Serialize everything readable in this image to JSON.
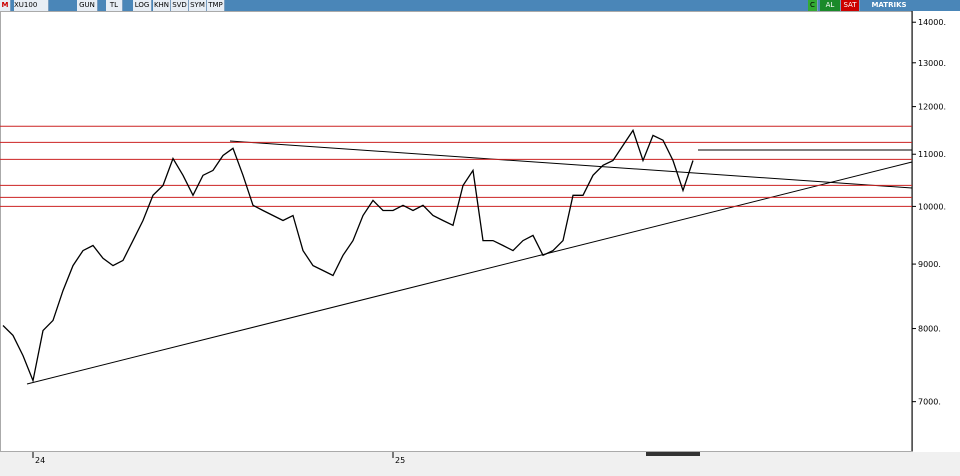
{
  "toolbar": {
    "logo": "M",
    "symbol": "XU100",
    "buttons": [
      "GUN",
      "TL",
      "LOG",
      "KHN",
      "SVD",
      "SYM",
      "TMP"
    ],
    "right": [
      "C",
      "AL",
      "SAT",
      "MATRIKS"
    ]
  },
  "chart_data": {
    "type": "line",
    "color": "#000000",
    "log_scale": true,
    "categories": [
      null,
      null,
      null,
      "24",
      null,
      null,
      null,
      null,
      null,
      null,
      null,
      null,
      null,
      null,
      null,
      null,
      null,
      null,
      null,
      null,
      null,
      null,
      null,
      null,
      null,
      null,
      null,
      null,
      null,
      null,
      null,
      null,
      null,
      null,
      null,
      null,
      null,
      null,
      null,
      "25",
      null,
      null,
      null,
      null,
      null,
      null,
      null,
      null,
      null,
      null,
      null,
      null,
      null,
      null,
      null,
      null,
      null,
      null,
      null,
      null,
      null,
      null,
      null,
      null,
      null,
      null,
      null,
      null,
      null,
      null
    ],
    "values": [
      8045,
      7900,
      7615,
      7275,
      7970,
      8120,
      8575,
      8975,
      9225,
      9310,
      9095,
      8975,
      9060,
      9395,
      9745,
      10205,
      10390,
      10915,
      10585,
      10205,
      10585,
      10680,
      10975,
      11120,
      10585,
      10020,
      9925,
      9835,
      9745,
      9835,
      9225,
      8975,
      8895,
      8815,
      9145,
      9395,
      9835,
      10110,
      9925,
      9925,
      10020,
      9925,
      10020,
      9835,
      9745,
      9660,
      10390,
      10680,
      9395,
      9395,
      9310,
      9225,
      9395,
      9485,
      9145,
      9225,
      9395,
      10205,
      10205,
      10585,
      10780,
      10875,
      11180,
      11490,
      10875,
      11385,
      11285,
      10875,
      10295,
      10875
    ],
    "ylim": [
      6420,
      14290
    ],
    "yticks": [
      {
        "value": 7000,
        "label": "7000."
      },
      {
        "value": 8000,
        "label": "8000."
      },
      {
        "value": 9000,
        "label": "9000."
      },
      {
        "value": 10000,
        "label": "10000."
      },
      {
        "value": 11000,
        "label": "11000."
      },
      {
        "value": 12000,
        "label": "12000."
      },
      {
        "value": 13000,
        "label": "13000."
      },
      {
        "value": 14000,
        "label": "14000."
      }
    ],
    "hlines": [
      11578,
      11242,
      10898,
      10392,
      10166,
      10000
    ],
    "hline_color": "#cc2222"
  }
}
